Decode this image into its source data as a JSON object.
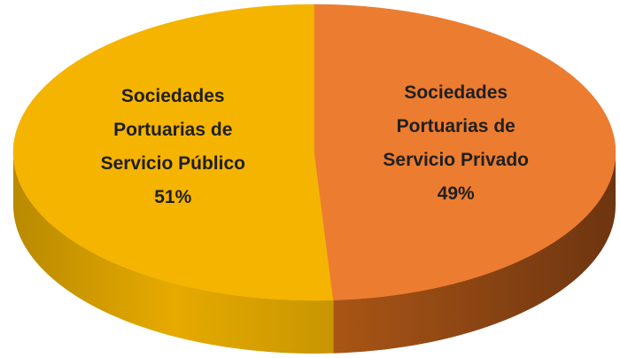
{
  "chart_data": {
    "type": "pie",
    "categories": [
      "Sociedades Portuarias de Servicio Público",
      "Sociedades Portuarias de Servicio Privado"
    ],
    "values": [
      51,
      49
    ],
    "value_labels": [
      "51%",
      "49%"
    ],
    "colors": [
      "#f5b400",
      "#ec7c30"
    ]
  }
}
